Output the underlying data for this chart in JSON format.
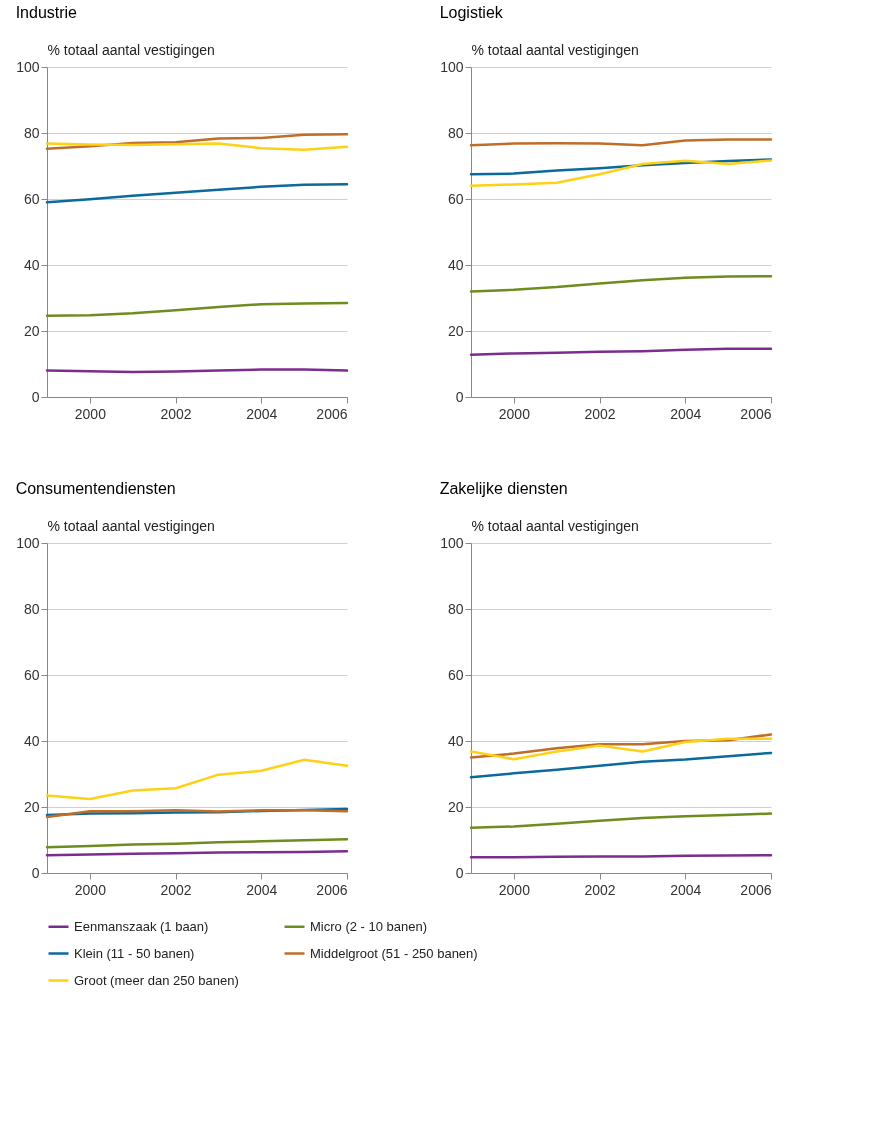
{
  "chart_data": [
    {
      "type": "line",
      "title": "Industrie",
      "ylabel": "% totaal aantal vestigingen",
      "x": [
        1999,
        2000,
        2001,
        2002,
        2003,
        2004,
        2005,
        2006
      ],
      "xlim": [
        1999,
        2006
      ],
      "xticks": [
        2000,
        2002,
        2004,
        2006
      ],
      "ylim": [
        0,
        100
      ],
      "yticks": [
        0,
        20,
        40,
        60,
        80,
        100
      ],
      "grid": "y",
      "legend": "bottom",
      "series": [
        {
          "name": "Eenmanszaak (1 baan)",
          "color": "#7b2d8e",
          "values": [
            8,
            7.8,
            7.6,
            7.7,
            8.0,
            8.3,
            8.3,
            8.0
          ]
        },
        {
          "name": "Micro (2 - 10 banen)",
          "color": "#6f8c1f",
          "values": [
            24.6,
            24.8,
            25.4,
            26.3,
            27.3,
            28.1,
            28.3,
            28.5
          ]
        },
        {
          "name": "Klein (11 - 50 banen)",
          "color": "#0b6a9c",
          "values": [
            59,
            59.9,
            61,
            61.9,
            62.8,
            63.7,
            64.3,
            64.5
          ]
        },
        {
          "name": "Middelgroot (51 - 250 banen)",
          "color": "#c06d28",
          "values": [
            75.2,
            76,
            77,
            77.2,
            78.3,
            78.5,
            79.5,
            79.6
          ]
        },
        {
          "name": "Groot (meer dan 250 banen)",
          "color": "#fcd116",
          "values": [
            76.8,
            76.5,
            76.4,
            76.6,
            76.8,
            75.4,
            74.9,
            75.8
          ]
        }
      ]
    },
    {
      "type": "line",
      "title": "Logistiek",
      "ylabel": "% totaal aantal vestigingen",
      "x": [
        1999,
        2000,
        2001,
        2002,
        2003,
        2004,
        2005,
        2006
      ],
      "xlim": [
        1999,
        2006
      ],
      "xticks": [
        2000,
        2002,
        2004,
        2006
      ],
      "ylim": [
        0,
        100
      ],
      "yticks": [
        0,
        20,
        40,
        60,
        80,
        100
      ],
      "grid": "y",
      "legend": "bottom",
      "series": [
        {
          "name": "Eenmanszaak (1 baan)",
          "color": "#7b2d8e",
          "values": [
            12.8,
            13.2,
            13.4,
            13.7,
            13.9,
            14.3,
            14.6,
            14.6
          ]
        },
        {
          "name": "Micro (2 - 10 banen)",
          "color": "#6f8c1f",
          "values": [
            32,
            32.5,
            33.3,
            34.4,
            35.4,
            36.1,
            36.5,
            36.6
          ]
        },
        {
          "name": "Klein (11 - 50 banen)",
          "color": "#0b6a9c",
          "values": [
            67.5,
            67.7,
            68.6,
            69.3,
            70.2,
            70.9,
            71.5,
            72
          ]
        },
        {
          "name": "Middelgroot (51 - 250 banen)",
          "color": "#c06d28",
          "values": [
            76.3,
            76.8,
            76.9,
            76.8,
            76.3,
            77.7,
            78,
            78
          ]
        },
        {
          "name": "Groot (meer dan 250 banen)",
          "color": "#fcd116",
          "values": [
            64,
            64.4,
            64.9,
            67.5,
            70.6,
            71.6,
            70.6,
            71.7
          ]
        }
      ]
    },
    {
      "type": "line",
      "title": "Consumentendiensten",
      "ylabel": "% totaal aantal vestigingen",
      "x": [
        1999,
        2000,
        2001,
        2002,
        2003,
        2004,
        2005,
        2006
      ],
      "xlim": [
        1999,
        2006
      ],
      "xticks": [
        2000,
        2002,
        2004,
        2006
      ],
      "ylim": [
        0,
        100
      ],
      "yticks": [
        0,
        20,
        40,
        60,
        80,
        100
      ],
      "grid": "y",
      "legend": "bottom",
      "series": [
        {
          "name": "Eenmanszaak (1 baan)",
          "color": "#7b2d8e",
          "values": [
            5.4,
            5.6,
            5.8,
            6.0,
            6.2,
            6.3,
            6.4,
            6.6
          ]
        },
        {
          "name": "Micro (2 - 10 banen)",
          "color": "#6f8c1f",
          "values": [
            7.8,
            8.2,
            8.6,
            8.9,
            9.3,
            9.6,
            9.9,
            10.2
          ]
        },
        {
          "name": "Klein (11 - 50 banen)",
          "color": "#0b6a9c",
          "values": [
            17.6,
            18,
            18.1,
            18.3,
            18.4,
            18.8,
            19.1,
            19.4
          ]
        },
        {
          "name": "Middelgroot (51 - 250 banen)",
          "color": "#c06d28",
          "values": [
            17,
            18.7,
            18.7,
            19,
            18.6,
            19,
            19,
            18.7
          ]
        },
        {
          "name": "Groot (meer dan 250 banen)",
          "color": "#fcd116",
          "values": [
            23.5,
            22.4,
            25,
            25.7,
            29.8,
            31,
            34.3,
            32.5
          ]
        }
      ]
    },
    {
      "type": "line",
      "title": "Zakelijke diensten",
      "ylabel": "% totaal aantal vestigingen",
      "x": [
        1999,
        2000,
        2001,
        2002,
        2003,
        2004,
        2005,
        2006
      ],
      "xlim": [
        1999,
        2006
      ],
      "xticks": [
        2000,
        2002,
        2004,
        2006
      ],
      "ylim": [
        0,
        100
      ],
      "yticks": [
        0,
        20,
        40,
        60,
        80,
        100
      ],
      "grid": "y",
      "legend": "bottom",
      "series": [
        {
          "name": "Eenmanszaak (1 baan)",
          "color": "#7b2d8e",
          "values": [
            4.8,
            4.8,
            4.9,
            5,
            5,
            5.2,
            5.3,
            5.4
          ]
        },
        {
          "name": "Micro (2 - 10 banen)",
          "color": "#6f8c1f",
          "values": [
            13.7,
            14.1,
            14.9,
            15.8,
            16.7,
            17.2,
            17.6,
            18
          ]
        },
        {
          "name": "Klein (11 - 50 banen)",
          "color": "#0b6a9c",
          "values": [
            29,
            30.2,
            31.3,
            32.5,
            33.7,
            34.4,
            35.4,
            36.4
          ]
        },
        {
          "name": "Middelgroot (51 - 250 banen)",
          "color": "#c06d28",
          "values": [
            35,
            36.2,
            37.8,
            39,
            39,
            40,
            40.2,
            42
          ]
        },
        {
          "name": "Groot (meer dan 250 banen)",
          "color": "#fcd116",
          "values": [
            36.8,
            34.5,
            36.8,
            38.6,
            36.8,
            39.7,
            40.7,
            40.7
          ]
        }
      ]
    }
  ]
}
